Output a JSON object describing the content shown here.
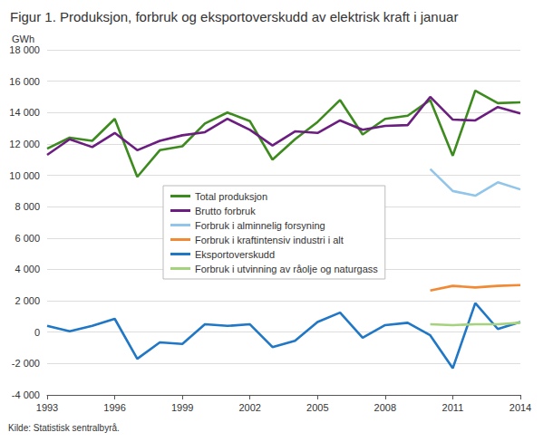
{
  "chart_data": {
    "type": "line",
    "title": "Figur 1. Produksjon, forbruk og eksportoverskudd av elektrisk kraft i januar",
    "y_label": "GWh",
    "source": "Kilde: Statistisk sentralbyrå.",
    "x": [
      1993,
      1994,
      1995,
      1996,
      1997,
      1998,
      1999,
      2000,
      2001,
      2002,
      2003,
      2004,
      2005,
      2006,
      2007,
      2008,
      2009,
      2010,
      2011,
      2012,
      2013,
      2014
    ],
    "xlim": [
      1993,
      2014
    ],
    "xticks": [
      1993,
      1996,
      1999,
      2002,
      2005,
      2008,
      2011,
      2014
    ],
    "ylim": [
      -4000,
      18000
    ],
    "yticks": [
      {
        "value": -4000,
        "label": "-4 000"
      },
      {
        "value": -2000,
        "label": "-2 000"
      },
      0,
      {
        "value": 2000,
        "label": "2 000"
      },
      {
        "value": 4000,
        "label": "4 000"
      },
      {
        "value": 6000,
        "label": "6 000"
      },
      {
        "value": 8000,
        "label": "8 000"
      },
      {
        "value": 10000,
        "label": "10 000"
      },
      {
        "value": 12000,
        "label": "12 000"
      },
      {
        "value": 14000,
        "label": "14 000"
      },
      {
        "value": 16000,
        "label": "16 000"
      },
      {
        "value": 18000,
        "label": "18 000"
      }
    ],
    "grid": true,
    "legend": "center",
    "series": [
      {
        "name": "Total produksjon",
        "color": "#3d8b1e",
        "values": [
          11700,
          12400,
          12200,
          13600,
          9900,
          11600,
          11850,
          13300,
          14000,
          13450,
          11000,
          12300,
          13400,
          14800,
          12600,
          13600,
          13800,
          14800,
          11250,
          15400,
          14600,
          14650
        ]
      },
      {
        "name": "Brutto forbruk",
        "color": "#6b1d80",
        "values": [
          11300,
          12300,
          11800,
          12700,
          11600,
          12200,
          12550,
          12750,
          13600,
          12900,
          11900,
          12800,
          12700,
          13500,
          12900,
          13150,
          13200,
          15000,
          13550,
          13500,
          14350,
          13950
        ]
      },
      {
        "name": "Forbruk i alminnelig forsyning",
        "color": "#92c5ea",
        "values": [
          null,
          null,
          null,
          null,
          null,
          null,
          null,
          null,
          null,
          null,
          null,
          null,
          null,
          null,
          null,
          null,
          null,
          10400,
          9000,
          8700,
          9550,
          9100
        ]
      },
      {
        "name": "Forbruk i kraftintensiv industri i alt",
        "color": "#f08a35",
        "values": [
          null,
          null,
          null,
          null,
          null,
          null,
          null,
          null,
          null,
          null,
          null,
          null,
          null,
          null,
          null,
          null,
          null,
          2650,
          2950,
          2850,
          2950,
          3000
        ]
      },
      {
        "name": "Eksportoverskudd",
        "color": "#1f77c6",
        "values": [
          400,
          50,
          400,
          850,
          -1700,
          -650,
          -750,
          500,
          400,
          500,
          -950,
          -550,
          650,
          1250,
          -350,
          450,
          600,
          -200,
          -2300,
          1850,
          200,
          650
        ]
      },
      {
        "name": "Forbruk i utvinning av råolje og naturgass",
        "color": "#a5d27c",
        "values": [
          null,
          null,
          null,
          null,
          null,
          null,
          null,
          null,
          null,
          null,
          null,
          null,
          null,
          null,
          null,
          null,
          null,
          500,
          450,
          500,
          500,
          600
        ]
      }
    ]
  }
}
